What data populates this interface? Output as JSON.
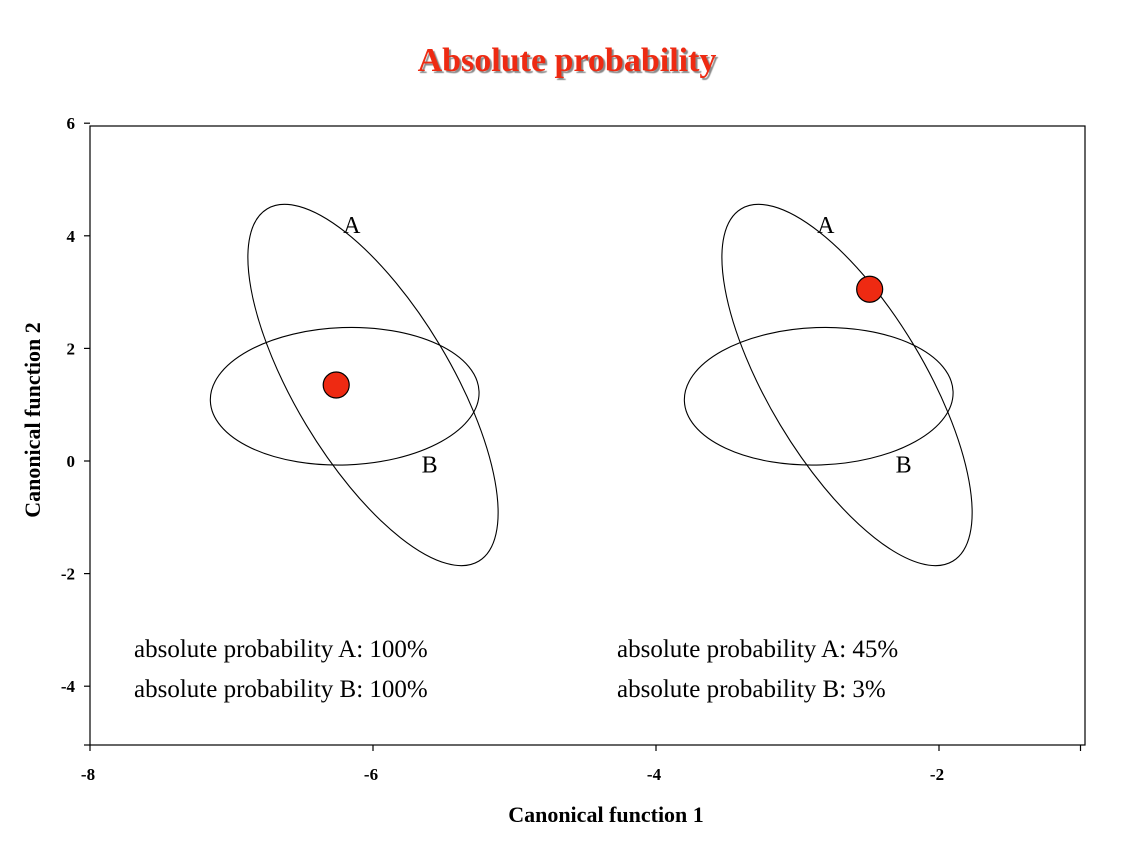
{
  "chart_data": {
    "type": "scatter",
    "title": "Absolute probability",
    "xlabel": "Canonical function 1",
    "ylabel": "Canonical function 2",
    "xlim": [
      -8,
      -1
    ],
    "ylim": [
      -5,
      6
    ],
    "x_ticks": [
      -8,
      -6,
      -4,
      -2
    ],
    "y_ticks": [
      6,
      4,
      2,
      0,
      -2,
      -4
    ],
    "x_tick_labels": [
      "-8",
      "-6",
      "-4",
      "-2"
    ],
    "y_tick_labels": [
      "6",
      "4",
      "2",
      "0",
      "-2",
      "-4"
    ],
    "grid": false,
    "panels": [
      {
        "ellipses": [
          {
            "label": "A",
            "cx": -6.0,
            "cy": 1.35,
            "rx": 0.55,
            "ry": 3.65,
            "angle_deg": -31
          },
          {
            "label": "B",
            "cx": -6.2,
            "cy": 1.15,
            "rx": 0.95,
            "ry": 1.22,
            "angle_deg": -2
          }
        ],
        "point": {
          "x": -6.26,
          "y": 1.35
        },
        "labels": {
          "A": {
            "x": -6.15,
            "y": 4.05
          },
          "B": {
            "x": -5.6,
            "y": -0.2
          }
        },
        "annotations": [
          "absolute probability A: 100%",
          "absolute probability B: 100%"
        ]
      },
      {
        "ellipses": [
          {
            "label": "A",
            "cx": -2.65,
            "cy": 1.35,
            "rx": 0.55,
            "ry": 3.65,
            "angle_deg": -31
          },
          {
            "label": "B",
            "cx": -2.85,
            "cy": 1.15,
            "rx": 0.95,
            "ry": 1.22,
            "angle_deg": -2
          }
        ],
        "point": {
          "x": -2.49,
          "y": 3.05
        },
        "labels": {
          "A": {
            "x": -2.8,
            "y": 4.05
          },
          "B": {
            "x": -2.25,
            "y": -0.2
          }
        },
        "annotations": [
          "absolute probability A: 45%",
          "absolute probability B: 3%"
        ]
      }
    ],
    "colors": {
      "point_fill": "#ee2a12",
      "title": "#ee2a12"
    }
  }
}
